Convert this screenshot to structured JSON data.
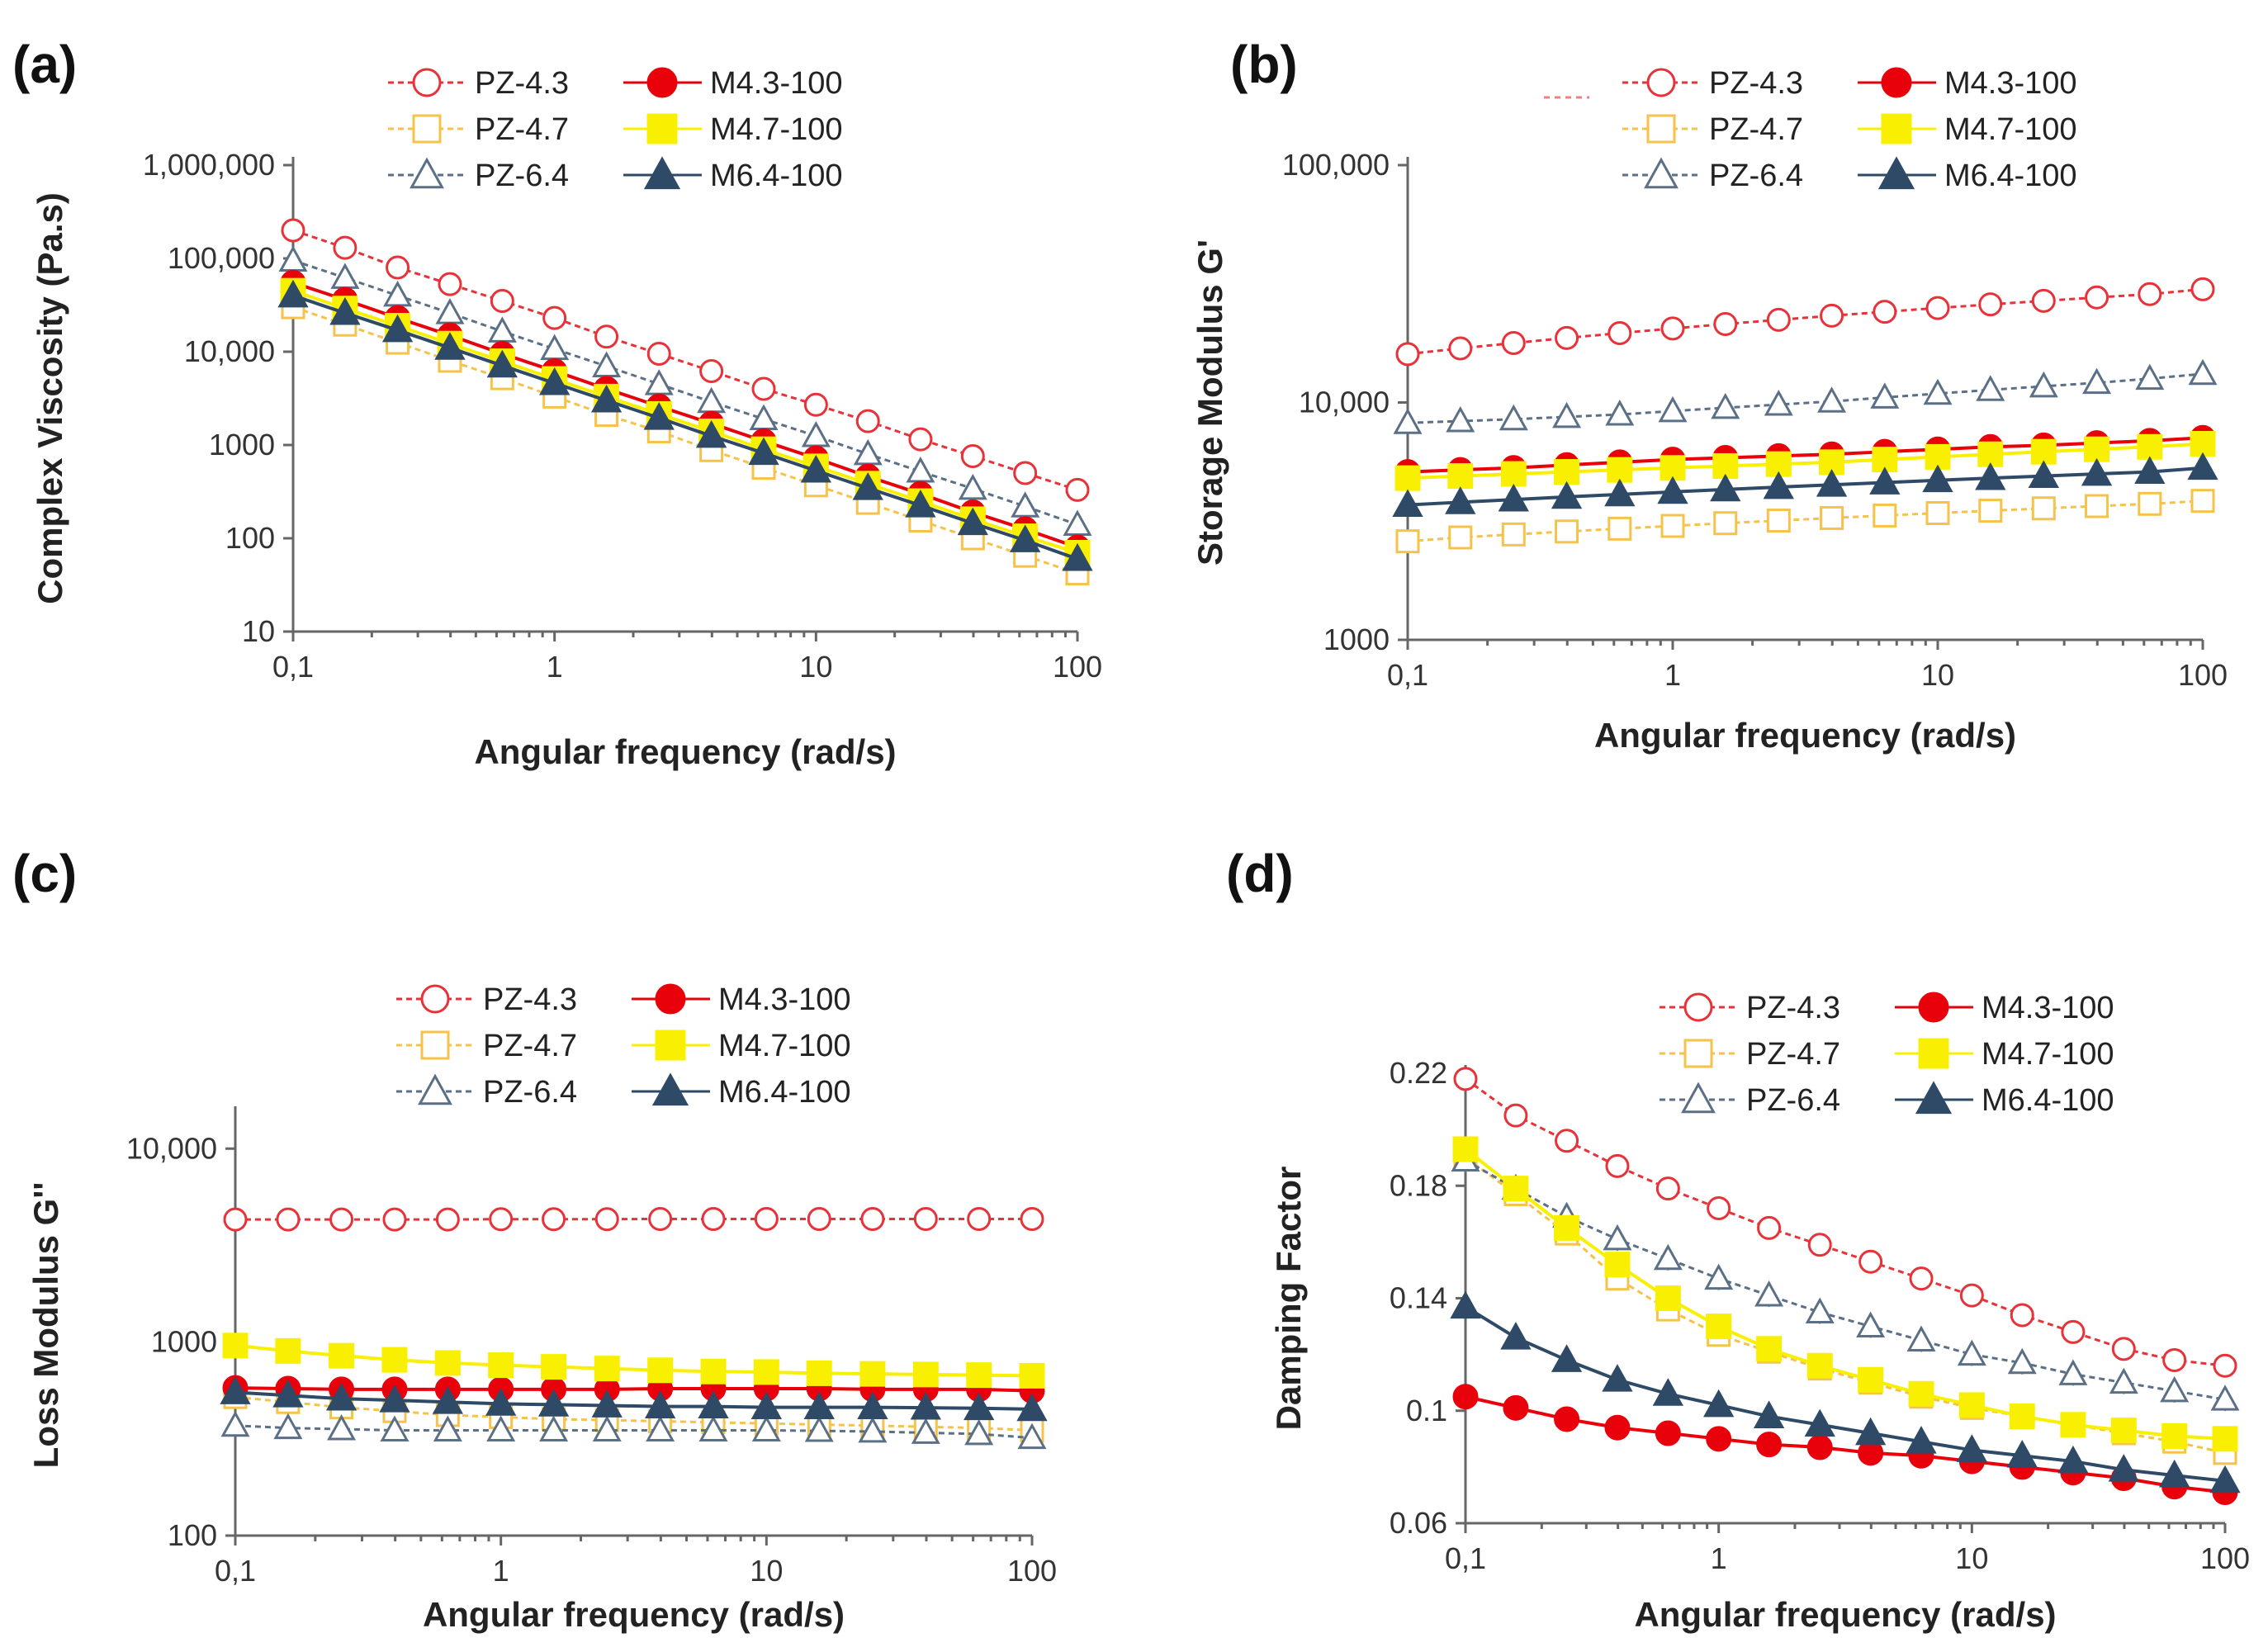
{
  "style": {
    "series": [
      {
        "name": "PZ-4.3",
        "color": "#e8323a",
        "marker": "circle",
        "filled": false,
        "dashed": true
      },
      {
        "name": "M4.3-100",
        "color": "#e8000b",
        "marker": "circle",
        "filled": true,
        "dashed": false
      },
      {
        "name": "PZ-4.7",
        "color": "#f5c24a",
        "marker": "square",
        "filled": false,
        "dashed": true
      },
      {
        "name": "M4.7-100",
        "color": "#f8f000",
        "marker": "square",
        "filled": true,
        "dashed": false
      },
      {
        "name": "PZ-6.4",
        "color": "#5b6f86",
        "marker": "triangle",
        "filled": false,
        "dashed": true
      },
      {
        "name": "M6.4-100",
        "color": "#2e4a66",
        "marker": "triangle",
        "filled": true,
        "dashed": false
      }
    ]
  },
  "chart_data": [
    {
      "panel": "(a)",
      "type": "line",
      "xscale": "log",
      "yscale": "log",
      "xlabel": "Angular frequency (rad/s)",
      "ylabel": "Complex Viscosity (Pa.s)",
      "xlim": [
        0.1,
        100
      ],
      "ylim": [
        10,
        1000000
      ],
      "xticks": [
        0.1,
        1,
        10,
        100
      ],
      "xticklabels": [
        "0,1",
        "1",
        "10",
        "100"
      ],
      "yticks": [
        10,
        100,
        1000,
        10000,
        100000,
        1000000
      ],
      "yticklabels": [
        "10",
        "100",
        "1000",
        "10,000",
        "100,000",
        "1,000,000"
      ],
      "x": [
        0.1,
        0.158,
        0.251,
        0.398,
        0.631,
        1,
        1.58,
        2.51,
        3.98,
        6.31,
        10,
        15.8,
        25.1,
        39.8,
        63.1,
        100
      ],
      "series": [
        {
          "name": "PZ-4.3",
          "values": [
            200000,
            130000,
            80000,
            53000,
            35000,
            23000,
            14500,
            9500,
            6200,
            4000,
            2700,
            1800,
            1150,
            760,
            500,
            330
          ]
        },
        {
          "name": "M4.3-100",
          "values": [
            55000,
            36000,
            23000,
            15000,
            9500,
            6200,
            4000,
            2600,
            1700,
            1100,
            720,
            460,
            300,
            190,
            125,
            80
          ]
        },
        {
          "name": "PZ-4.7",
          "values": [
            30000,
            19500,
            12500,
            8000,
            5200,
            3300,
            2100,
            1400,
            880,
            570,
            370,
            240,
            155,
            100,
            65,
            42
          ]
        },
        {
          "name": "M4.7-100",
          "values": [
            45000,
            29000,
            19000,
            12200,
            7900,
            5100,
            3300,
            2150,
            1400,
            900,
            590,
            385,
            250,
            160,
            105,
            70
          ]
        },
        {
          "name": "PZ-6.4",
          "values": [
            95000,
            62000,
            40000,
            26000,
            16500,
            10700,
            7000,
            4500,
            2900,
            1900,
            1250,
            800,
            520,
            340,
            220,
            140
          ]
        },
        {
          "name": "M6.4-100",
          "values": [
            40000,
            26000,
            17000,
            11000,
            7100,
            4600,
            3000,
            1950,
            1250,
            820,
            530,
            345,
            225,
            145,
            95,
            60
          ]
        }
      ]
    },
    {
      "panel": "(b)",
      "type": "line",
      "xscale": "log",
      "yscale": "log",
      "xlabel": "Angular frequency (rad/s)",
      "ylabel": "Storage Modulus G'",
      "xlim": [
        0.1,
        100
      ],
      "ylim": [
        1000,
        100000
      ],
      "xticks": [
        0.1,
        1,
        10,
        100
      ],
      "xticklabels": [
        "0,1",
        "1",
        "10",
        "100"
      ],
      "yticks": [
        1000,
        10000,
        100000
      ],
      "yticklabels": [
        "1000",
        "10,000",
        "100,000"
      ],
      "x": [
        0.1,
        0.158,
        0.251,
        0.398,
        0.631,
        1,
        1.58,
        2.51,
        3.98,
        6.31,
        10,
        15.8,
        25.1,
        39.8,
        63.1,
        100
      ],
      "series": [
        {
          "name": "PZ-4.3",
          "values": [
            16000,
            16900,
            17800,
            18700,
            19600,
            20500,
            21400,
            22300,
            23200,
            24100,
            25000,
            25900,
            26800,
            27700,
            28600,
            30000
          ]
        },
        {
          "name": "M4.3-100",
          "values": [
            5100,
            5200,
            5300,
            5450,
            5600,
            5750,
            5850,
            5950,
            6050,
            6200,
            6350,
            6500,
            6600,
            6750,
            6900,
            7100
          ]
        },
        {
          "name": "PZ-4.7",
          "values": [
            2600,
            2700,
            2780,
            2860,
            2940,
            3020,
            3100,
            3180,
            3260,
            3340,
            3420,
            3500,
            3580,
            3660,
            3740,
            3850
          ]
        },
        {
          "name": "M4.7-100",
          "values": [
            4800,
            4900,
            5000,
            5100,
            5200,
            5300,
            5400,
            5500,
            5600,
            5750,
            5900,
            6050,
            6200,
            6350,
            6500,
            6700
          ]
        },
        {
          "name": "PZ-6.4",
          "values": [
            8200,
            8350,
            8500,
            8700,
            8900,
            9200,
            9500,
            9800,
            10100,
            10500,
            10900,
            11300,
            11700,
            12100,
            12600,
            13200
          ]
        },
        {
          "name": "M6.4-100",
          "values": [
            3700,
            3800,
            3900,
            4000,
            4100,
            4200,
            4300,
            4400,
            4500,
            4600,
            4700,
            4800,
            4900,
            5000,
            5100,
            5300
          ]
        }
      ]
    },
    {
      "panel": "(c)",
      "type": "line",
      "xscale": "log",
      "yscale": "log",
      "xlabel": "Angular frequency (rad/s)",
      "ylabel": "Loss Modulus G''",
      "xlim": [
        0.1,
        100
      ],
      "ylim": [
        100,
        15000
      ],
      "xticks": [
        0.1,
        1,
        10,
        100
      ],
      "xticklabels": [
        "0,1",
        "1",
        "10",
        "100"
      ],
      "yticks": [
        100,
        1000,
        10000
      ],
      "yticklabels": [
        "100",
        "1000",
        "10,000"
      ],
      "x": [
        0.1,
        0.158,
        0.251,
        0.398,
        0.631,
        1,
        1.58,
        2.51,
        3.98,
        6.31,
        10,
        15.8,
        25.1,
        39.8,
        63.1,
        100
      ],
      "series": [
        {
          "name": "PZ-4.3",
          "values": [
            4300,
            4300,
            4300,
            4300,
            4300,
            4320,
            4320,
            4320,
            4330,
            4330,
            4330,
            4330,
            4330,
            4330,
            4330,
            4330
          ]
        },
        {
          "name": "M4.3-100",
          "values": [
            580,
            575,
            570,
            570,
            570,
            570,
            570,
            570,
            575,
            575,
            575,
            575,
            570,
            570,
            570,
            560
          ]
        },
        {
          "name": "PZ-4.7",
          "values": [
            520,
            490,
            460,
            440,
            420,
            410,
            400,
            395,
            390,
            385,
            380,
            375,
            370,
            365,
            360,
            350
          ]
        },
        {
          "name": "M4.7-100",
          "values": [
            960,
            900,
            850,
            810,
            780,
            760,
            745,
            730,
            715,
            705,
            700,
            690,
            685,
            680,
            675,
            670
          ]
        },
        {
          "name": "PZ-6.4",
          "values": [
            370,
            360,
            355,
            350,
            350,
            350,
            350,
            350,
            350,
            350,
            350,
            348,
            345,
            340,
            335,
            320
          ]
        },
        {
          "name": "M6.4-100",
          "values": [
            550,
            530,
            510,
            500,
            490,
            480,
            475,
            470,
            465,
            465,
            460,
            460,
            460,
            458,
            455,
            450
          ]
        }
      ]
    },
    {
      "panel": "(d)",
      "type": "line",
      "xscale": "log",
      "yscale": "linear",
      "xlabel": "Angular frequency (rad/s)",
      "ylabel": "Damping Factor",
      "xlim": [
        0.1,
        100
      ],
      "ylim": [
        0.06,
        0.22
      ],
      "xticks": [
        0.1,
        1,
        10,
        100
      ],
      "xticklabels": [
        "0,1",
        "1",
        "10",
        "100"
      ],
      "yticks": [
        0.06,
        0.1,
        0.14,
        0.18,
        0.22
      ],
      "yticklabels": [
        "0.06",
        "0.1",
        "0.14",
        "0.18",
        "0.22"
      ],
      "x": [
        0.1,
        0.158,
        0.251,
        0.398,
        0.631,
        1,
        1.58,
        2.51,
        3.98,
        6.31,
        10,
        15.8,
        25.1,
        39.8,
        63.1,
        100
      ],
      "series": [
        {
          "name": "PZ-4.3",
          "values": [
            0.218,
            0.205,
            0.196,
            0.187,
            0.179,
            0.172,
            0.165,
            0.159,
            0.153,
            0.147,
            0.141,
            0.134,
            0.128,
            0.122,
            0.118,
            0.116
          ]
        },
        {
          "name": "M4.3-100",
          "values": [
            0.105,
            0.101,
            0.097,
            0.094,
            0.092,
            0.09,
            0.088,
            0.087,
            0.085,
            0.084,
            0.082,
            0.08,
            0.078,
            0.076,
            0.073,
            0.071
          ]
        },
        {
          "name": "PZ-4.7",
          "values": [
            0.19,
            0.177,
            0.163,
            0.147,
            0.136,
            0.127,
            0.121,
            0.115,
            0.11,
            0.105,
            0.101,
            0.098,
            0.095,
            0.092,
            0.089,
            0.085
          ]
        },
        {
          "name": "M4.7-100",
          "values": [
            0.193,
            0.179,
            0.165,
            0.152,
            0.14,
            0.13,
            0.122,
            0.116,
            0.111,
            0.106,
            0.102,
            0.098,
            0.095,
            0.093,
            0.091,
            0.09
          ]
        },
        {
          "name": "PZ-6.4",
          "values": [
            0.189,
            0.179,
            0.169,
            0.161,
            0.154,
            0.147,
            0.141,
            0.135,
            0.13,
            0.125,
            0.12,
            0.117,
            0.113,
            0.11,
            0.107,
            0.104
          ]
        },
        {
          "name": "M6.4-100",
          "values": [
            0.137,
            0.126,
            0.118,
            0.111,
            0.106,
            0.102,
            0.098,
            0.095,
            0.092,
            0.089,
            0.086,
            0.084,
            0.082,
            0.079,
            0.077,
            0.075
          ]
        }
      ]
    }
  ]
}
